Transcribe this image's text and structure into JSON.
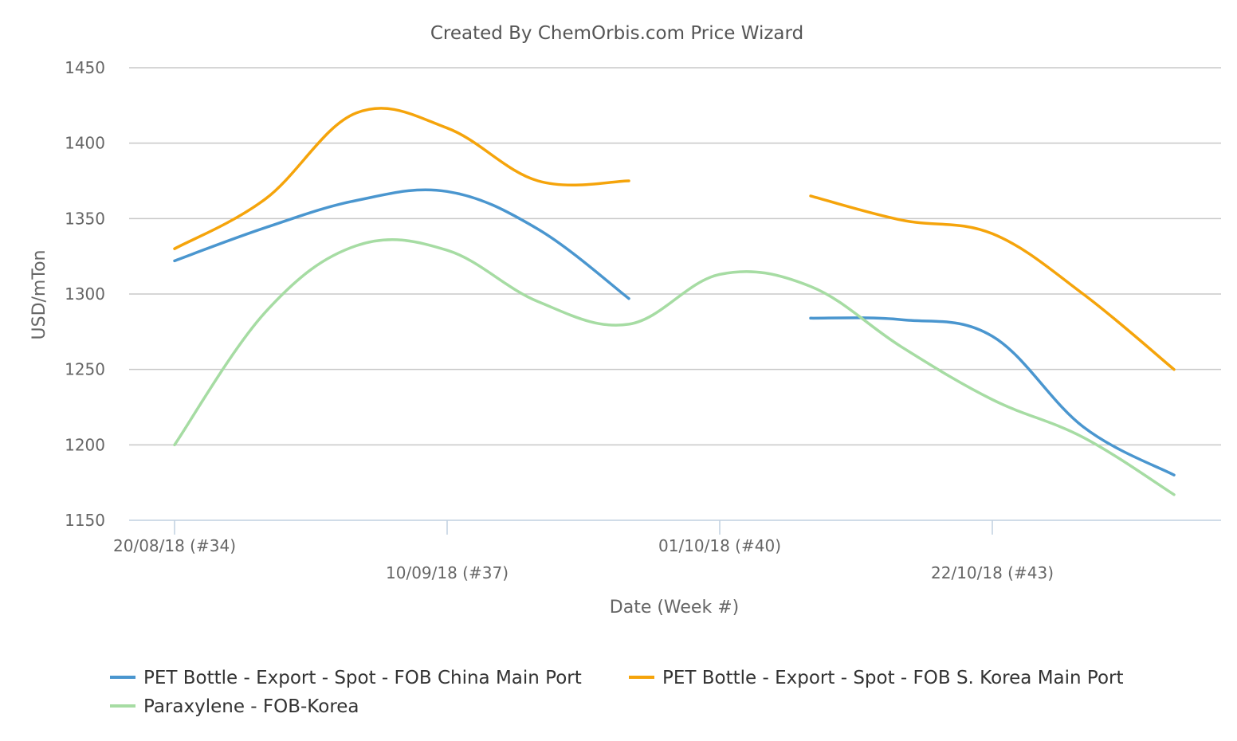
{
  "chart_data": {
    "type": "line",
    "title": "Created By ChemOrbis.com Price Wizard",
    "xlabel": "Date (Week #)",
    "ylabel": "USD/mTon",
    "ylim": [
      1150,
      1450
    ],
    "y_ticks": [
      1150,
      1200,
      1250,
      1300,
      1350,
      1400,
      1450
    ],
    "x_tick_labels": [
      "20/08/18 (#34)",
      "10/09/18 (#37)",
      "01/10/18 (#40)",
      "22/10/18 (#43)"
    ],
    "grid": true,
    "legend_position": "bottom",
    "x": [
      "20/08/18",
      "27/08/18",
      "03/09/18",
      "10/09/18",
      "17/09/18",
      "24/09/18",
      "01/10/18",
      "08/10/18",
      "15/10/18",
      "22/10/18",
      "29/10/18",
      "05/11/18"
    ],
    "series": [
      {
        "name": "PET Bottle - Export - Spot - FOB China Main Port",
        "color": "#4a96cf",
        "values": [
          1322,
          1344,
          1362,
          1368,
          1343,
          1297,
          null,
          1284,
          1283,
          1272,
          1212,
          1180
        ]
      },
      {
        "name": "PET Bottle - Export - Spot - FOB S. Korea Main Port",
        "color": "#f5a40b",
        "values": [
          1330,
          1363,
          1420,
          1410,
          1375,
          1375,
          null,
          1365,
          1349,
          1340,
          1300,
          1250
        ]
      },
      {
        "name": "Paraxylene - FOB-Korea",
        "color": "#a6dca3",
        "values": [
          1200,
          1288,
          1332,
          1329,
          1295,
          1280,
          1313,
          1305,
          1265,
          1230,
          1205,
          1167
        ]
      }
    ]
  }
}
